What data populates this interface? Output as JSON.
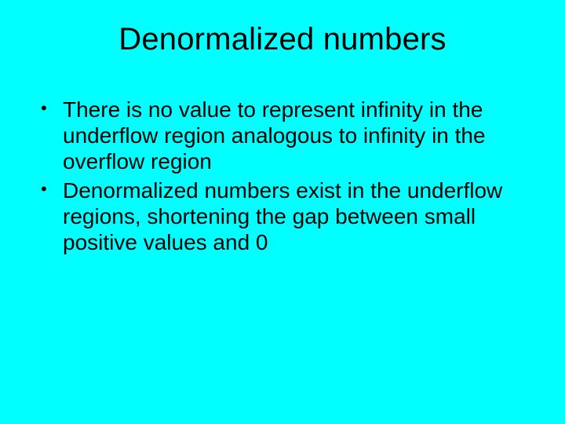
{
  "slide": {
    "background_color": "#00ffff",
    "text_color": "#000000",
    "title": "Denormalized numbers",
    "title_fontsize": 40,
    "body_fontsize": 28,
    "font_family": "Arial",
    "bullets": [
      "There is no value to represent infinity in the underflow region analogous to infinity in the overflow region",
      "Denormalized numbers exist in the underflow regions, shortening the gap between small positive values and 0"
    ]
  }
}
